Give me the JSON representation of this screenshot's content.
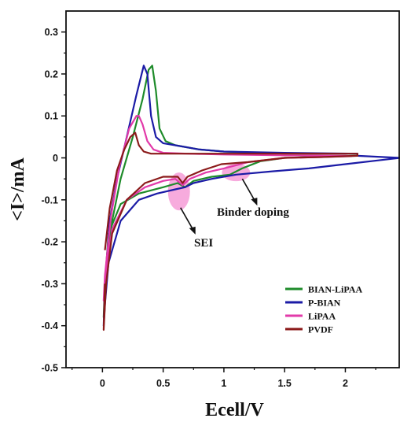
{
  "chart_data": {
    "type": "line",
    "title": "",
    "xlabel": "Ecell/V",
    "ylabel": "<I>/mA",
    "xlim": [
      -0.3,
      2.45
    ],
    "ylim": [
      -0.5,
      0.35
    ],
    "xticks": [
      0,
      0.5,
      1,
      1.5,
      2
    ],
    "xtick_labels": [
      "0",
      "0.5",
      "1",
      "1.5",
      "2"
    ],
    "yticks": [
      -0.5,
      -0.4,
      -0.3,
      -0.2,
      -0.1,
      0,
      0.1,
      0.2,
      0.3
    ],
    "ytick_labels": [
      "-0.5",
      "-0.4",
      "-0.3",
      "-0.2",
      "-0.1",
      "0",
      "0.1",
      "0.2",
      "0.3"
    ],
    "grid": false,
    "legend_position": "bottom-right",
    "annotations": [
      {
        "text": "SEI",
        "x": 0.63,
        "y": -0.085
      },
      {
        "text": "Binder doping",
        "x": 1.1,
        "y": -0.035
      }
    ],
    "highlight_regions": [
      {
        "x": 0.63,
        "y": -0.08,
        "color": "#f48fd1"
      },
      {
        "x": 1.1,
        "y": -0.035,
        "color": "#f48fd1"
      }
    ],
    "series": [
      {
        "name": "BIAN-LiPAA",
        "color": "#1e8b2a",
        "x": [
          0.03,
          0.08,
          0.15,
          0.25,
          0.33,
          0.38,
          0.41,
          0.44,
          0.47,
          0.52,
          0.6,
          0.8,
          1.0,
          1.5,
          2.1,
          2.1,
          1.8,
          1.5,
          1.3,
          1.15,
          1.05,
          0.9,
          0.75,
          0.68,
          0.62,
          0.5,
          0.3,
          0.15,
          0.05,
          0.02,
          0.01,
          0.02,
          0.03
        ],
        "y": [
          -0.27,
          -0.15,
          -0.05,
          0.05,
          0.14,
          0.21,
          0.22,
          0.16,
          0.07,
          0.04,
          0.03,
          0.02,
          0.015,
          0.01,
          0.01,
          0.005,
          0.003,
          0.0,
          -0.008,
          -0.025,
          -0.04,
          -0.045,
          -0.055,
          -0.07,
          -0.06,
          -0.07,
          -0.085,
          -0.11,
          -0.18,
          -0.3,
          -0.38,
          -0.31,
          -0.27
        ]
      },
      {
        "name": "P-BIAN",
        "color": "#1b1ba6",
        "x": [
          0.02,
          0.06,
          0.12,
          0.2,
          0.28,
          0.34,
          0.37,
          0.4,
          0.44,
          0.5,
          0.6,
          0.8,
          1.0,
          1.5,
          2.1,
          2.1,
          2.45,
          2.3,
          2.0,
          1.7,
          1.4,
          1.1,
          0.9,
          0.75,
          0.68,
          0.6,
          0.45,
          0.3,
          0.15,
          0.05,
          0.02,
          0.01,
          0.02
        ],
        "y": [
          -0.3,
          -0.15,
          -0.05,
          0.05,
          0.15,
          0.22,
          0.2,
          0.1,
          0.05,
          0.035,
          0.03,
          0.02,
          0.015,
          0.012,
          0.01,
          0.005,
          0.0,
          -0.005,
          -0.015,
          -0.025,
          -0.032,
          -0.04,
          -0.05,
          -0.06,
          -0.07,
          -0.075,
          -0.085,
          -0.1,
          -0.15,
          -0.25,
          -0.35,
          -0.4,
          -0.3
        ]
      },
      {
        "name": "LiPAA",
        "color": "#e23aa9",
        "x": [
          0.02,
          0.07,
          0.14,
          0.22,
          0.28,
          0.3,
          0.33,
          0.37,
          0.42,
          0.5,
          0.7,
          1.0,
          1.5,
          2.0,
          2.05,
          1.8,
          1.5,
          1.2,
          1.0,
          0.85,
          0.72,
          0.66,
          0.6,
          0.5,
          0.35,
          0.2,
          0.08,
          0.03,
          0.01,
          0.02
        ],
        "y": [
          -0.28,
          -0.14,
          -0.02,
          0.07,
          0.1,
          0.1,
          0.08,
          0.04,
          0.02,
          0.012,
          0.01,
          0.008,
          0.006,
          0.005,
          0.004,
          0.002,
          0.0,
          -0.01,
          -0.025,
          -0.035,
          -0.05,
          -0.065,
          -0.05,
          -0.055,
          -0.07,
          -0.1,
          -0.17,
          -0.27,
          -0.34,
          -0.28
        ]
      },
      {
        "name": "PVDF",
        "color": "#8b1a1a",
        "x": [
          0.02,
          0.06,
          0.12,
          0.18,
          0.23,
          0.27,
          0.3,
          0.34,
          0.4,
          0.5,
          0.7,
          1.0,
          1.5,
          2.1,
          2.1,
          1.8,
          1.5,
          1.2,
          0.98,
          0.82,
          0.7,
          0.66,
          0.62,
          0.5,
          0.35,
          0.2,
          0.08,
          0.03,
          0.01,
          0.02
        ],
        "y": [
          -0.22,
          -0.12,
          -0.03,
          0.02,
          0.05,
          0.06,
          0.03,
          0.015,
          0.01,
          0.01,
          0.01,
          0.01,
          0.01,
          0.01,
          0.005,
          0.002,
          0.0,
          -0.01,
          -0.015,
          -0.03,
          -0.045,
          -0.06,
          -0.045,
          -0.045,
          -0.06,
          -0.1,
          -0.18,
          -0.3,
          -0.41,
          -0.3
        ]
      }
    ]
  }
}
